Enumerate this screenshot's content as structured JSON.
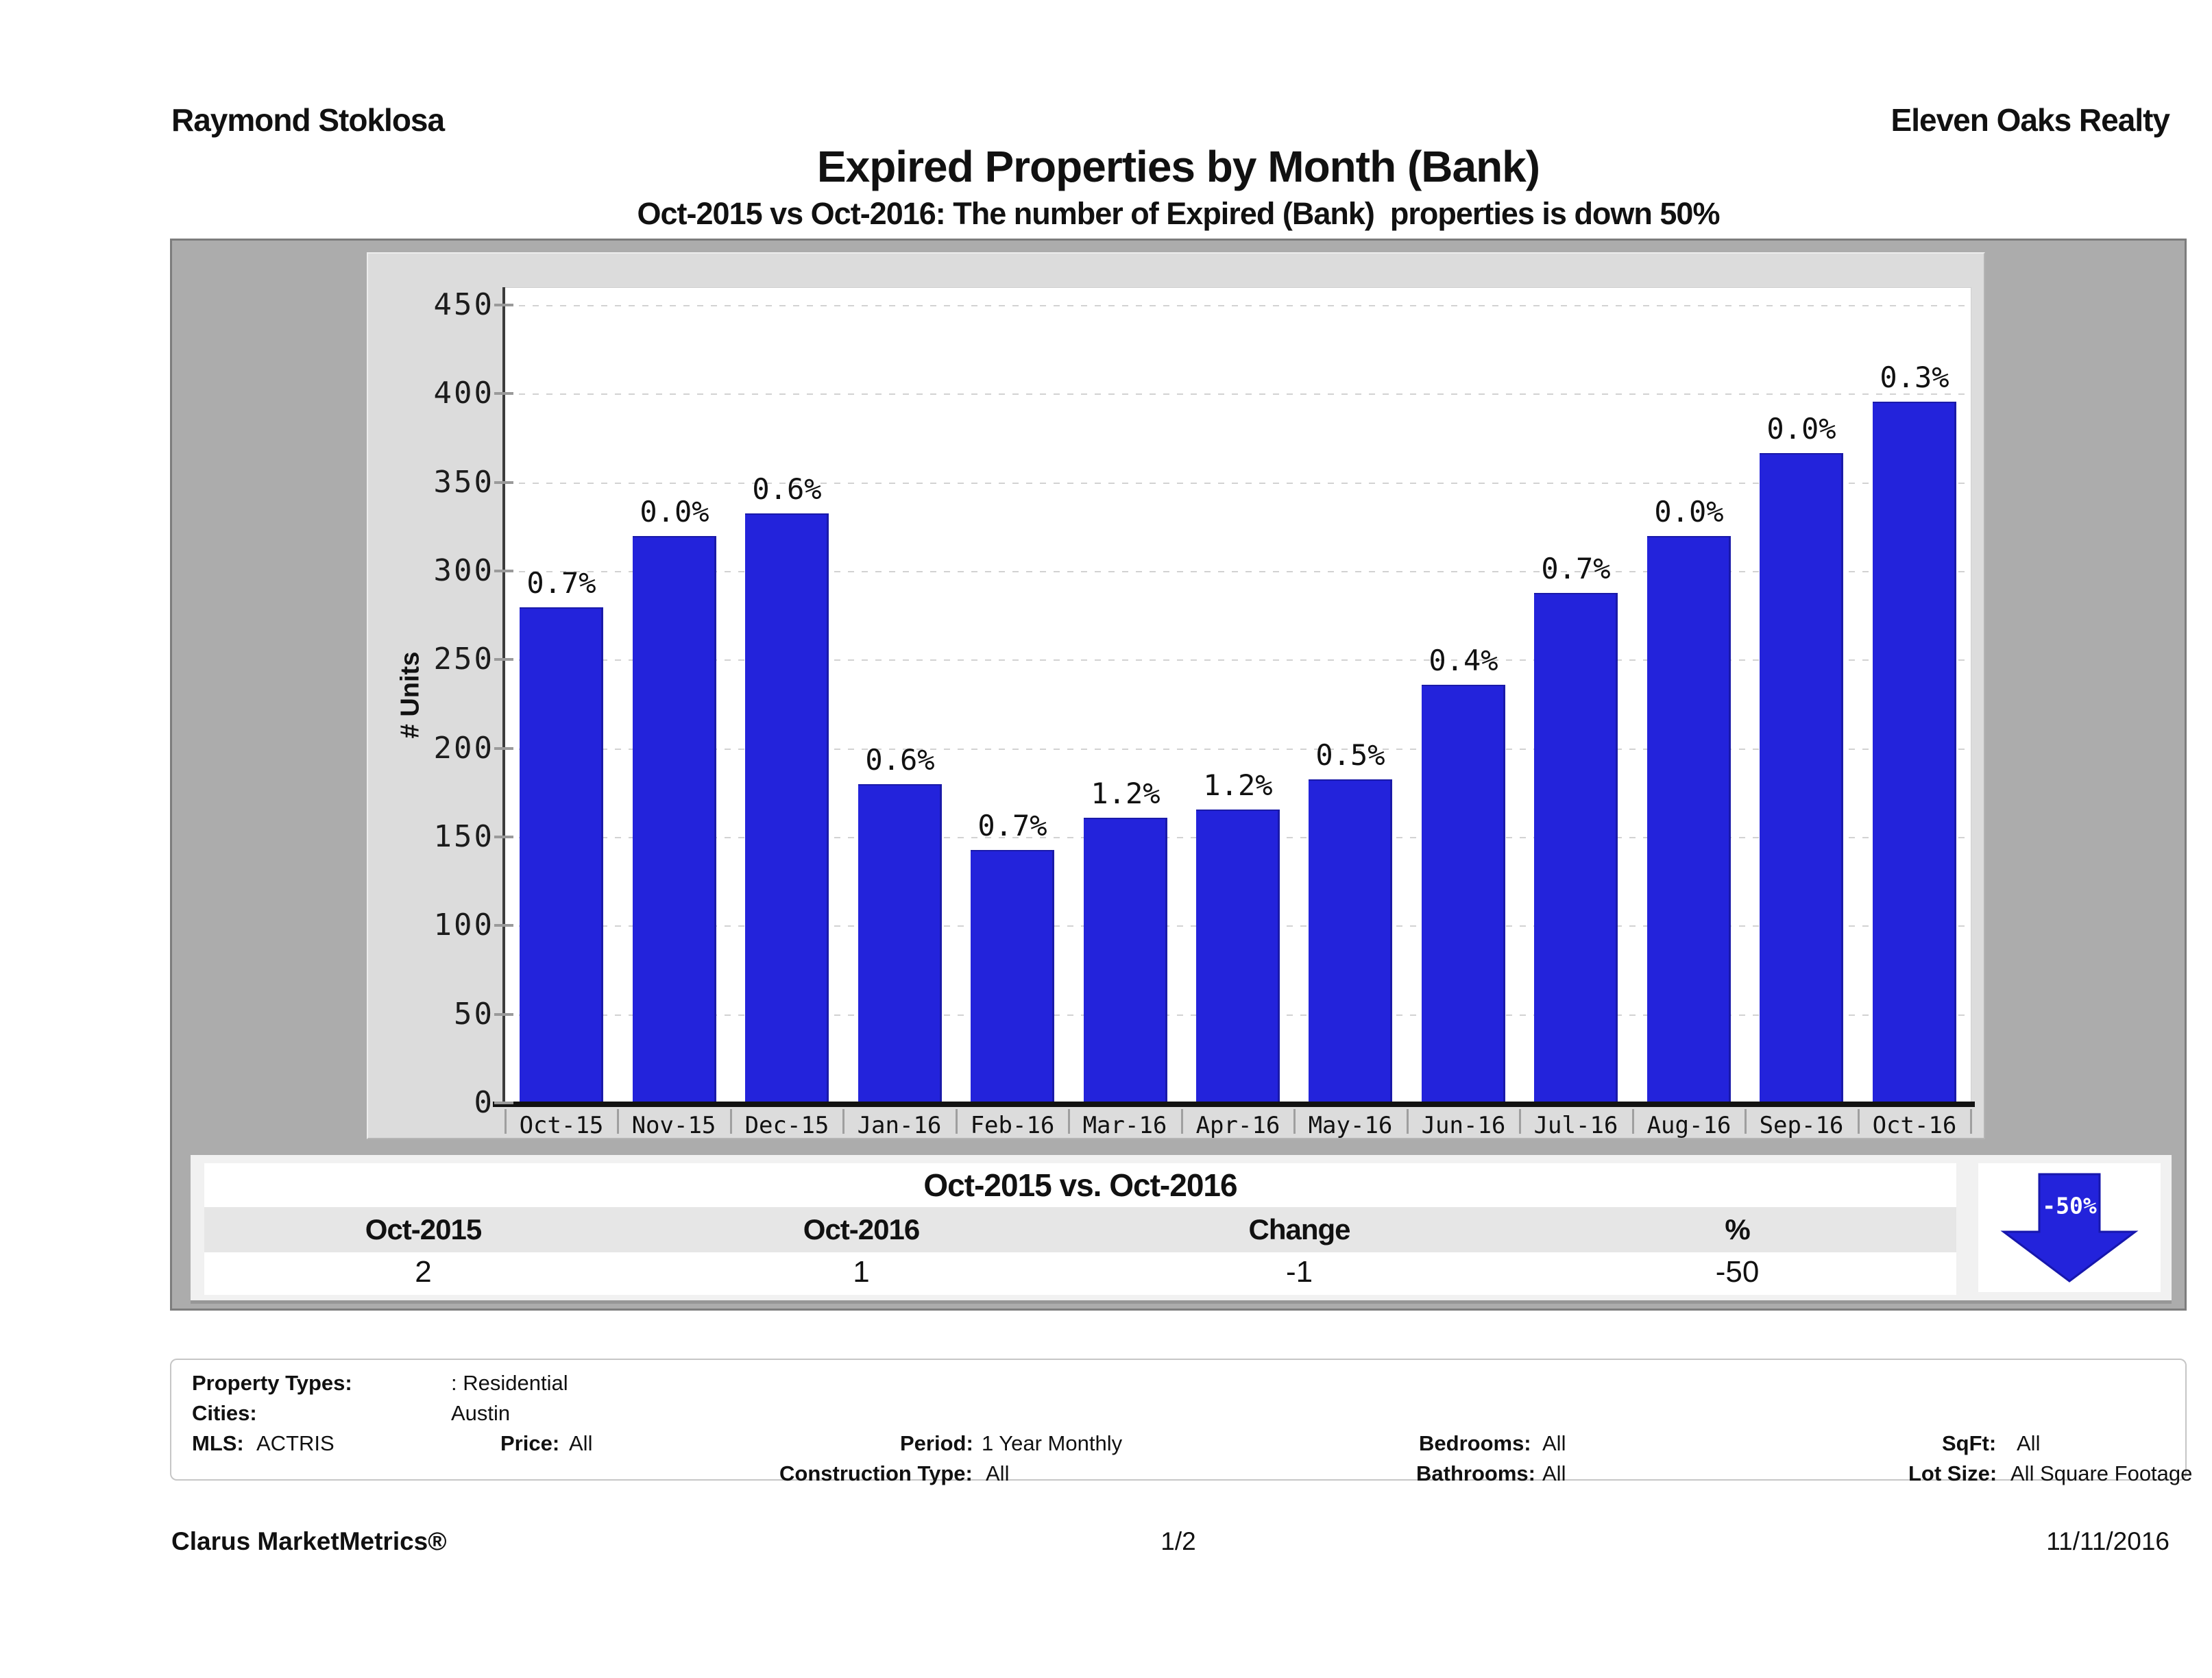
{
  "header": {
    "agent": "Raymond Stoklosa",
    "company": "Eleven Oaks Realty",
    "title": "Expired Properties by Month (Bank)",
    "subtitle": "Oct-2015 vs Oct-2016: The number of Expired (Bank)  properties is down 50%"
  },
  "chart_data": {
    "type": "bar",
    "title": "Expired Properties by Month (Bank)",
    "xlabel": "",
    "ylabel": "# Units",
    "ylim": [
      0,
      460
    ],
    "yticks": [
      0,
      50,
      100,
      150,
      200,
      250,
      300,
      350,
      400,
      450
    ],
    "grid": "horizontal-dashed",
    "legend_position": "none",
    "bar_color": "#2323db",
    "categories": [
      "Oct-15",
      "Nov-15",
      "Dec-15",
      "Jan-16",
      "Feb-16",
      "Mar-16",
      "Apr-16",
      "May-16",
      "Jun-16",
      "Jul-16",
      "Aug-16",
      "Sep-16",
      "Oct-16"
    ],
    "values": [
      280,
      320,
      333,
      180,
      143,
      161,
      166,
      183,
      236,
      288,
      320,
      367,
      396
    ],
    "bar_labels": [
      "0.7%",
      "0.0%",
      "0.6%",
      "0.6%",
      "0.7%",
      "1.2%",
      "1.2%",
      "0.5%",
      "0.4%",
      "0.7%",
      "0.0%",
      "0.0%",
      "0.3%"
    ]
  },
  "comparison": {
    "title": "Oct-2015 vs. Oct-2016",
    "columns": [
      "Oct-2015",
      "Oct-2016",
      "Change",
      "%"
    ],
    "values": [
      "2",
      "1",
      "-1",
      "-50"
    ],
    "arrow_label": "-50%",
    "arrow_color": "#2323db",
    "arrow_direction": "down"
  },
  "filters": {
    "property_types": {
      "label": "Property Types:",
      "value": ": Residential"
    },
    "cities": {
      "label": "Cities:",
      "value": "Austin"
    },
    "mls": {
      "label": "MLS:",
      "value": "ACTRIS"
    },
    "price": {
      "label": "Price:",
      "value": "All"
    },
    "period": {
      "label": "Period:",
      "value": "1 Year Monthly"
    },
    "construction_type": {
      "label": "Construction Type:",
      "value": "All"
    },
    "bedrooms": {
      "label": "Bedrooms:",
      "value": "All"
    },
    "bathrooms": {
      "label": "Bathrooms:",
      "value": "All"
    },
    "sqft": {
      "label": "SqFt:",
      "value": "All"
    },
    "lot_size": {
      "label": "Lot Size:",
      "value": "All Square Footage"
    }
  },
  "footer": {
    "brand": "Clarus MarketMetrics®",
    "page": "1/2",
    "date": "11/11/2016"
  }
}
